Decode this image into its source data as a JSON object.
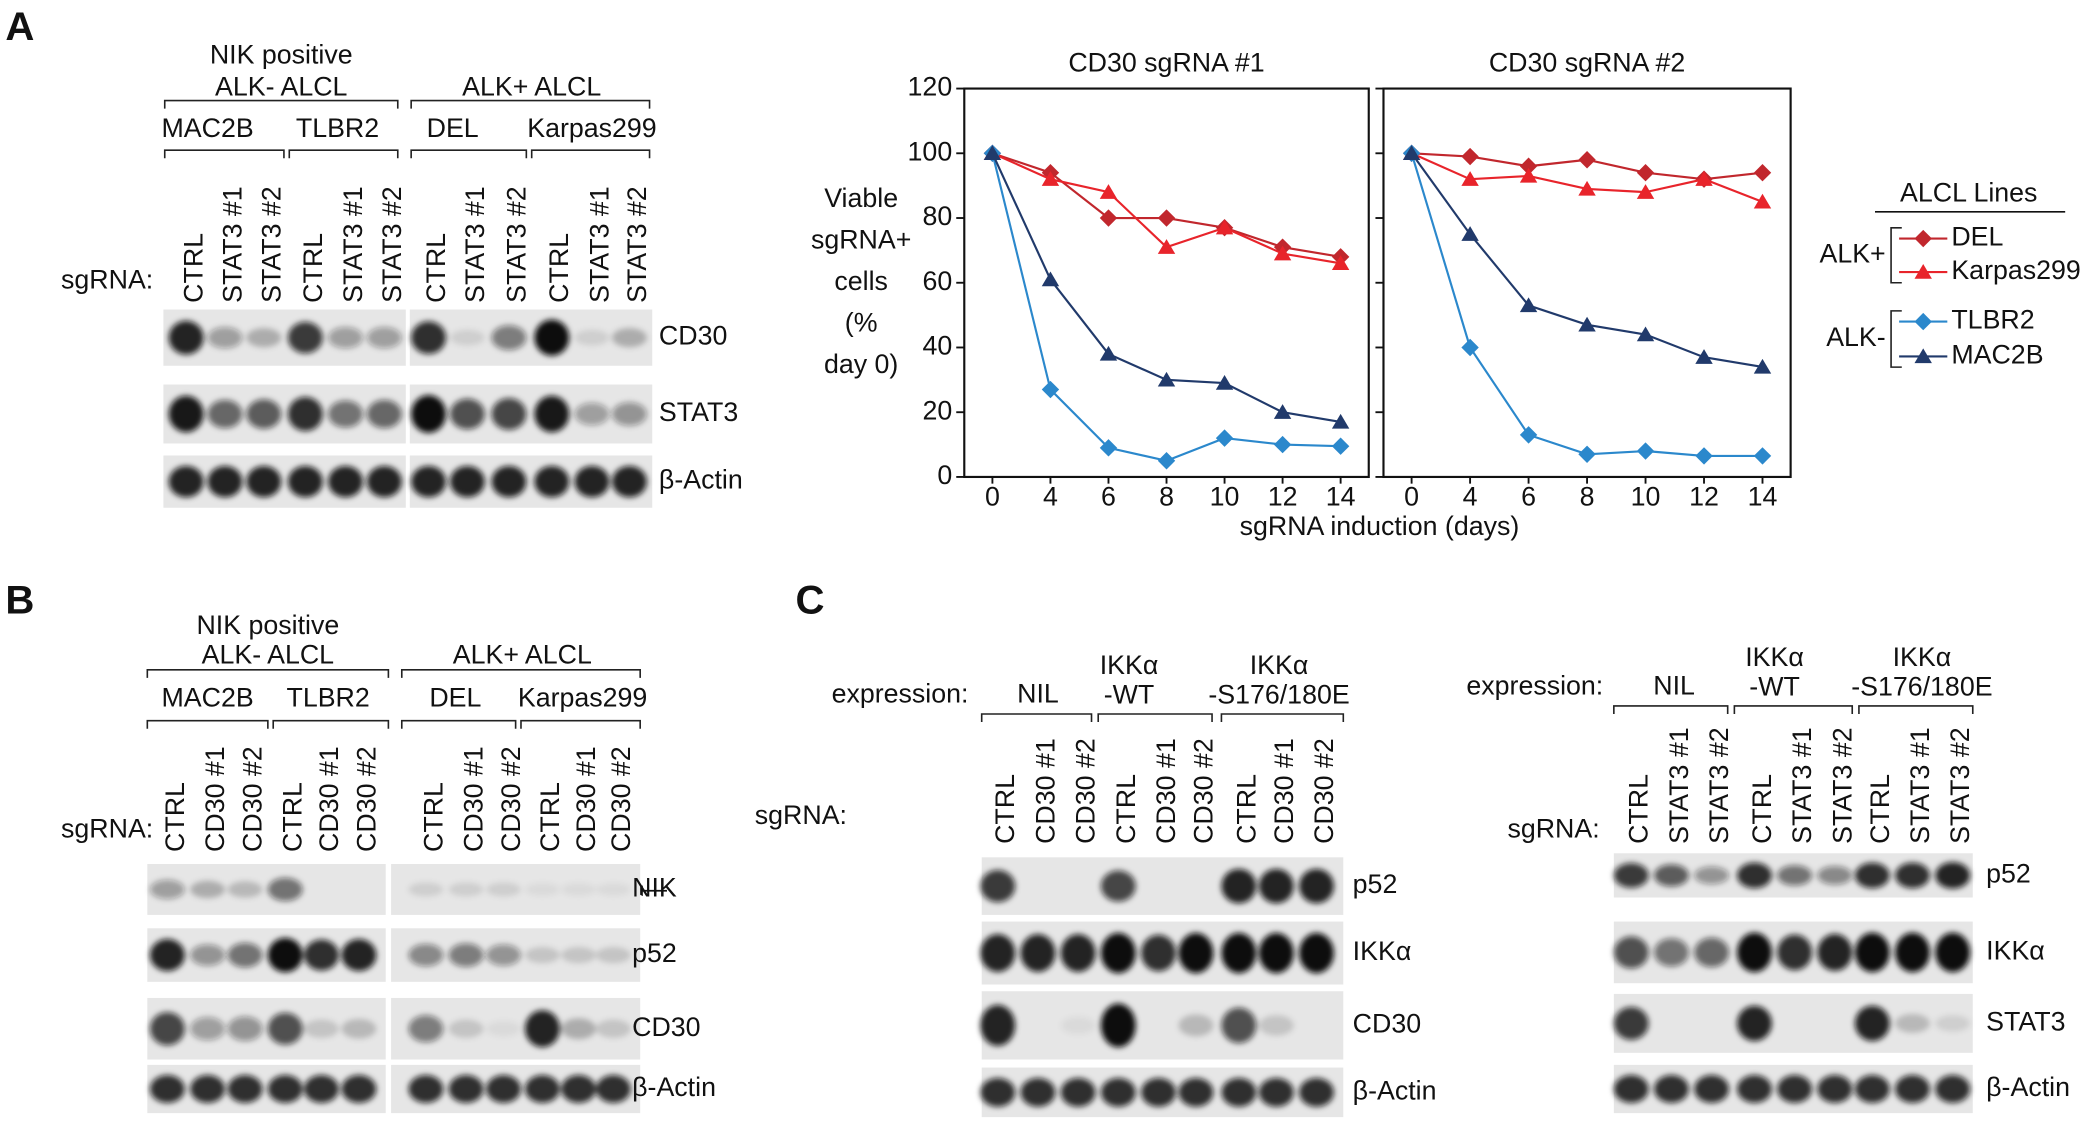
{
  "panel_a": {
    "label": "A",
    "blot": {
      "groups": [
        {
          "title": [
            "NIK positive",
            "ALK- ALCL"
          ],
          "lines": [
            "MAC2B",
            "TLBR2"
          ]
        },
        {
          "title": [
            "ALK+ ALCL"
          ],
          "lines": [
            "DEL",
            "Karpas299"
          ]
        }
      ],
      "row_label": "sgRNA:",
      "lanes": [
        "CTRL",
        "STAT3 #1",
        "STAT3 #2",
        "CTRL",
        "STAT3 #1",
        "STAT3 #2",
        "CTRL",
        "STAT3 #1",
        "STAT3 #2",
        "CTRL",
        "STAT3 #1",
        "STAT3 #2"
      ],
      "bands": [
        "CD30",
        "STAT3",
        "β-Actin"
      ]
    }
  },
  "panel_b": {
    "label": "B",
    "blot": {
      "groups": [
        {
          "title": [
            "NIK positive",
            "ALK- ALCL"
          ],
          "lines": [
            "MAC2B",
            "TLBR2"
          ]
        },
        {
          "title": [
            "ALK+ ALCL"
          ],
          "lines": [
            "DEL",
            "Karpas299"
          ]
        }
      ],
      "row_label": "sgRNA:",
      "lanes": [
        "CTRL",
        "CD30 #1",
        "CD30 #2",
        "CTRL",
        "CD30 #1",
        "CD30 #2",
        "CTRL",
        "CD30 #1",
        "CD30 #2",
        "CTRL",
        "CD30 #1",
        "CD30 #2"
      ],
      "bands": [
        "NIK",
        "p52",
        "CD30",
        "β-Actin"
      ]
    }
  },
  "panel_c": {
    "label": "C",
    "blots": [
      {
        "expression_label": "expression:",
        "groups": [
          {
            "title": [
              "NIL"
            ]
          },
          {
            "title": [
              "IKKα",
              "-WT"
            ]
          },
          {
            "title": [
              "IKKα",
              "-S176/180E"
            ]
          }
        ],
        "row_label": "sgRNA:",
        "lanes": [
          "CTRL",
          "CD30 #1",
          "CD30 #2",
          "CTRL",
          "CD30 #1",
          "CD30 #2",
          "CTRL",
          "CD30 #1",
          "CD30 #2"
        ],
        "bands": [
          "p52",
          "IKKα",
          "CD30",
          "β-Actin"
        ]
      },
      {
        "expression_label": "expression:",
        "groups": [
          {
            "title": [
              "NIL"
            ]
          },
          {
            "title": [
              "IKKα",
              "-WT"
            ]
          },
          {
            "title": [
              "IKKα",
              "-S176/180E"
            ]
          }
        ],
        "row_label": "sgRNA:",
        "lanes": [
          "CTRL",
          "STAT3 #1",
          "STAT3 #2",
          "CTRL",
          "STAT3 #1",
          "STAT3 #2",
          "CTRL",
          "STAT3 #1",
          "STAT3 #2"
        ],
        "bands": [
          "p52",
          "IKKα",
          "STAT3",
          "β-Actin"
        ]
      }
    ]
  },
  "chart_data": [
    {
      "type": "line",
      "title": "CD30 sgRNA #1",
      "ylabel": [
        "Viable",
        "sgRNA+",
        "cells",
        "(%",
        "day 0)"
      ],
      "xlabel": "sgRNA induction (days)",
      "categories": [
        "0",
        "4",
        "6",
        "8",
        "10",
        "12",
        "14"
      ],
      "ylim": [
        0,
        120
      ],
      "yticks": [
        0,
        20,
        40,
        60,
        80,
        100,
        120
      ],
      "legend_title": "ALCL Lines",
      "legend_groups": [
        "ALK+",
        "ALK-"
      ],
      "series": [
        {
          "name": "DEL",
          "color": "#c1272d",
          "marker": "diamond",
          "values": [
            100,
            94,
            80,
            80,
            77,
            71,
            68
          ]
        },
        {
          "name": "Karpas299",
          "color": "#e8242b",
          "marker": "triangle",
          "values": [
            100,
            92,
            88,
            71,
            77,
            69,
            66
          ]
        },
        {
          "name": "TLBR2",
          "color": "#2b88cc",
          "marker": "diamond",
          "values": [
            100,
            27,
            9,
            5,
            12,
            10,
            9.5
          ]
        },
        {
          "name": "MAC2B",
          "color": "#213a6b",
          "marker": "triangle",
          "values": [
            100,
            61,
            38,
            30,
            29,
            20,
            17
          ]
        }
      ]
    },
    {
      "type": "line",
      "title": "CD30 sgRNA #2",
      "categories": [
        "0",
        "4",
        "6",
        "8",
        "10",
        "12",
        "14"
      ],
      "ylim": [
        0,
        120
      ],
      "yticks": [
        0,
        20,
        40,
        60,
        80,
        100,
        120
      ],
      "series": [
        {
          "name": "DEL",
          "color": "#c1272d",
          "marker": "diamond",
          "values": [
            100,
            99,
            96,
            98,
            94,
            92,
            94
          ]
        },
        {
          "name": "Karpas299",
          "color": "#e8242b",
          "marker": "triangle",
          "values": [
            100,
            92,
            93,
            89,
            88,
            92,
            85
          ]
        },
        {
          "name": "TLBR2",
          "color": "#2b88cc",
          "marker": "diamond",
          "values": [
            100,
            40,
            13,
            7,
            8,
            6.5,
            6.5
          ]
        },
        {
          "name": "MAC2B",
          "color": "#213a6b",
          "marker": "triangle",
          "values": [
            100,
            75,
            53,
            47,
            44,
            37,
            34
          ]
        }
      ]
    }
  ]
}
